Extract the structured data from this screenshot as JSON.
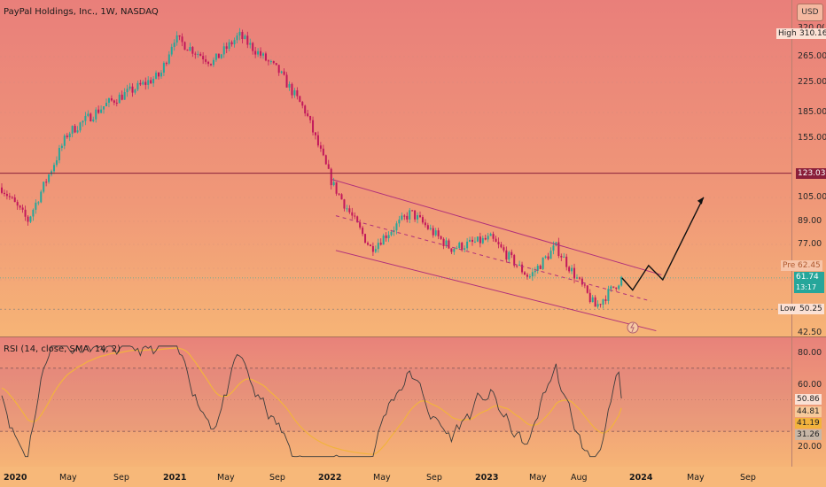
{
  "header": {
    "title": "PayPal Holdings, Inc., 1W, NASDAQ",
    "currency": "USD"
  },
  "price_axis": {
    "ticks": [
      "265.00",
      "225.00",
      "185.00",
      "155.00",
      "105.00",
      "89.00",
      "77.00",
      "42.50"
    ],
    "partial_top_tick": "320.00",
    "high_label": "High",
    "high_value": "310.16",
    "low_label": "Low",
    "low_value": "50.25",
    "horizontal_level": "123.03",
    "pre_label": "Pre",
    "pre_value": "62.45",
    "last_value": "61.74",
    "countdown": "13:17"
  },
  "rsi_panel": {
    "label": "RSI (14, close, SMA, 14, 2)",
    "ticks": [
      "80.00",
      "60.00",
      "20.00"
    ],
    "rsi_value": "50.86",
    "sma_value": "44.81",
    "lower_band_value": "41.19",
    "bottom_value": "31.26"
  },
  "time_axis": {
    "labels": [
      {
        "text": "2020",
        "bold": true
      },
      {
        "text": "May",
        "bold": false
      },
      {
        "text": "Sep",
        "bold": false
      },
      {
        "text": "2021",
        "bold": true
      },
      {
        "text": "May",
        "bold": false
      },
      {
        "text": "Sep",
        "bold": false
      },
      {
        "text": "2022",
        "bold": true
      },
      {
        "text": "May",
        "bold": false
      },
      {
        "text": "Sep",
        "bold": false
      },
      {
        "text": "2023",
        "bold": true
      },
      {
        "text": "May",
        "bold": false
      },
      {
        "text": "Aug",
        "bold": false
      },
      {
        "text": "2024",
        "bold": true
      },
      {
        "text": "May",
        "bold": false
      },
      {
        "text": "Sep",
        "bold": false
      }
    ]
  },
  "colors": {
    "up": "#26a69a",
    "down": "#c2185b",
    "channel": "#b0307a",
    "rsi_line": "#3d3d3d",
    "rsi_sma": "#f2b33d",
    "level_line": "#8a1f3a",
    "projection": "#111111",
    "bg_top": "#e97f7a",
    "bg_bottom": "#f6b476"
  },
  "chart_data": {
    "type": "candlestick",
    "title": "PayPal Holdings, Inc., 1W, NASDAQ",
    "y_scale": "log",
    "ylim": [
      42.5,
      320
    ],
    "x_range": [
      "2020-01",
      "2024-10"
    ],
    "approx_close_path": [
      {
        "t": "2020-01",
        "close": 112
      },
      {
        "t": "2020-03",
        "close": 90
      },
      {
        "t": "2020-06",
        "close": 160
      },
      {
        "t": "2020-09",
        "close": 195
      },
      {
        "t": "2021-01",
        "close": 235
      },
      {
        "t": "2021-02",
        "close": 300
      },
      {
        "t": "2021-05",
        "close": 255
      },
      {
        "t": "2021-07",
        "close": 305
      },
      {
        "t": "2021-10",
        "close": 240
      },
      {
        "t": "2021-12",
        "close": 185
      },
      {
        "t": "2022-02",
        "close": 115
      },
      {
        "t": "2022-05",
        "close": 75
      },
      {
        "t": "2022-08",
        "close": 95
      },
      {
        "t": "2022-11",
        "close": 75
      },
      {
        "t": "2023-02",
        "close": 80
      },
      {
        "t": "2023-05",
        "close": 62
      },
      {
        "t": "2023-07",
        "close": 76
      },
      {
        "t": "2023-10",
        "close": 51
      },
      {
        "t": "2023-12",
        "close": 61.74
      }
    ],
    "annotations": {
      "horizontal_level": 123.03,
      "high": 310.16,
      "low": 50.25,
      "pre_market": 62.45,
      "projection_target": 105
    },
    "rsi": {
      "label": "RSI (14, close, SMA, 14, 2)",
      "ylim": [
        10,
        85
      ],
      "upper_band": 70,
      "lower_band": 30,
      "current_rsi": 50.86,
      "current_sma": 44.81
    }
  }
}
